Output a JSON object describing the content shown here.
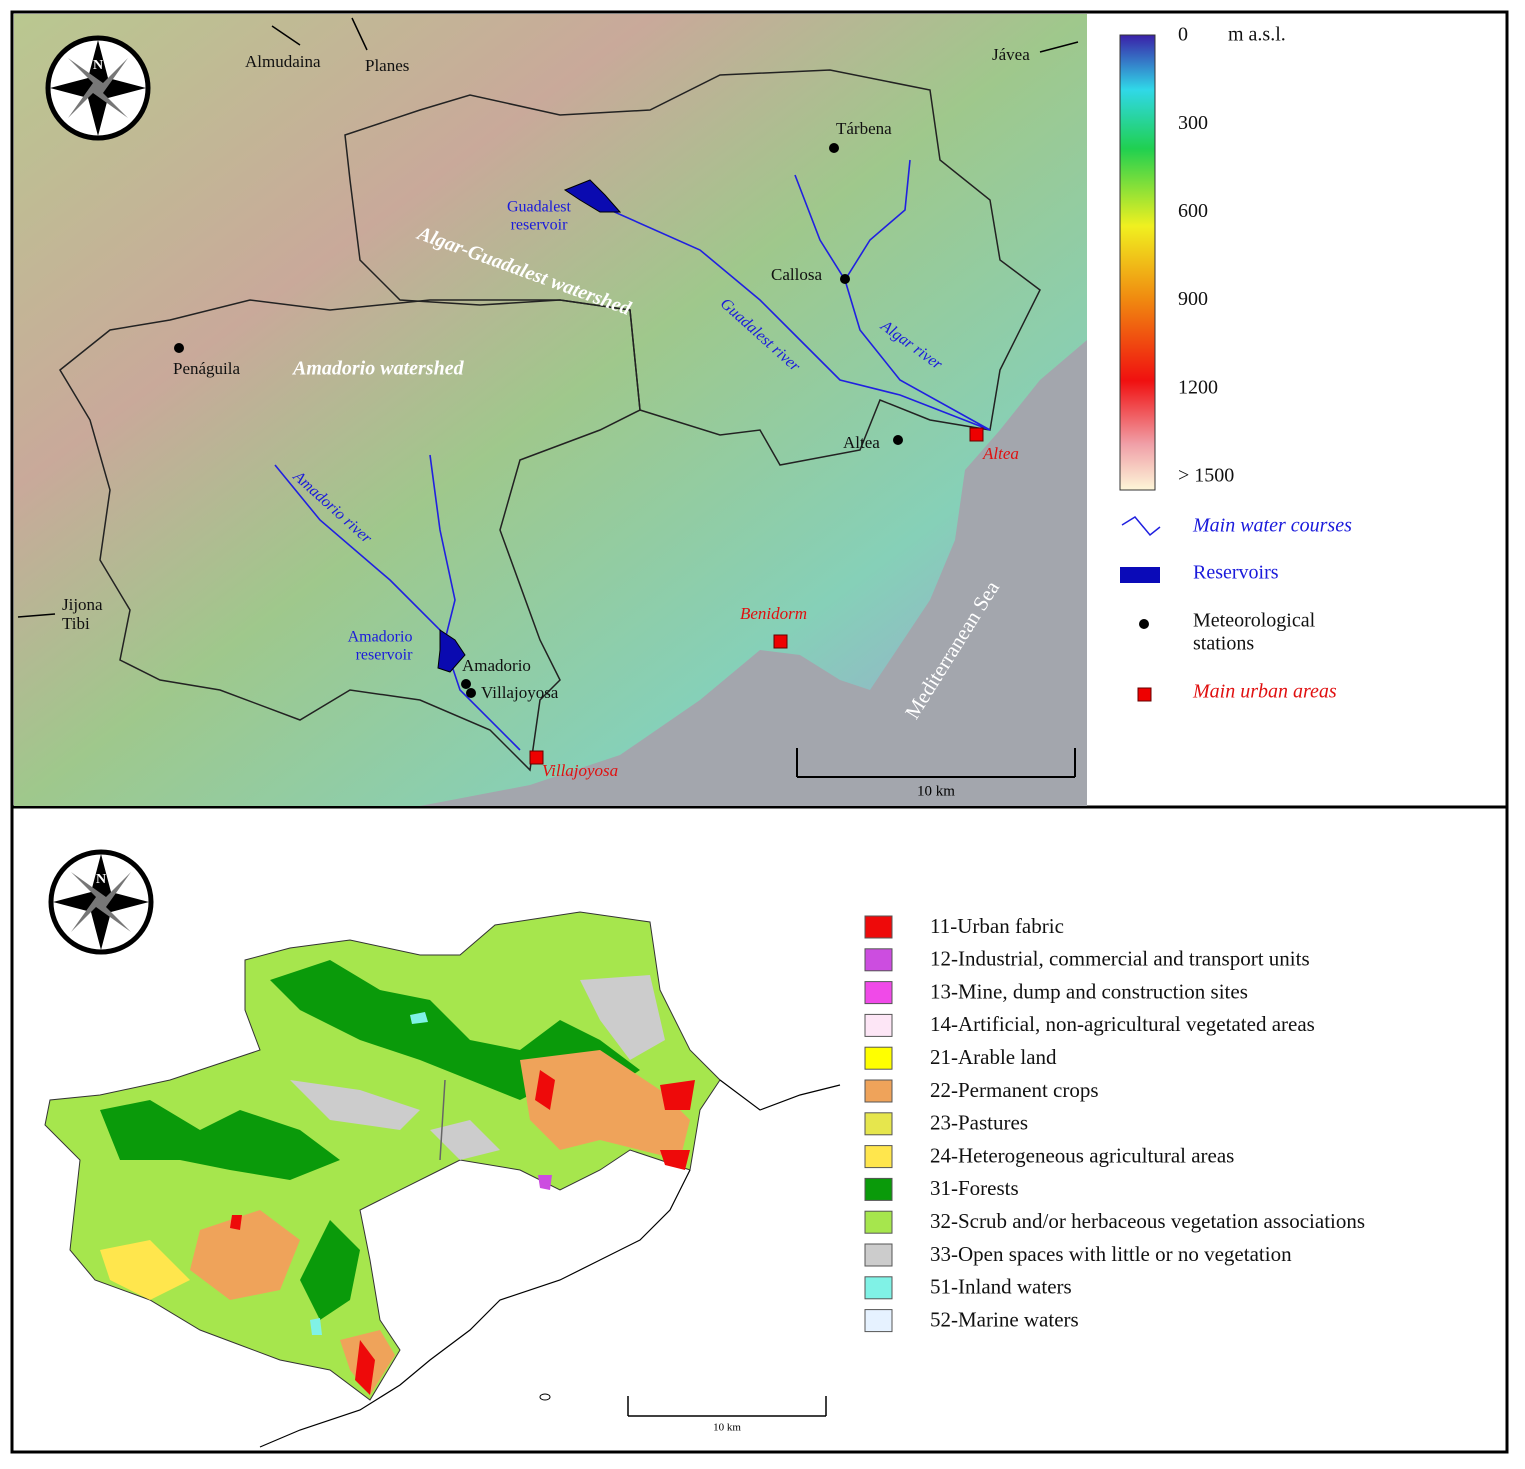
{
  "top_map": {
    "places": [
      "Almudaina",
      "Planes",
      "Jávea",
      "Tárbena",
      "Callosa",
      "Penáguila",
      "Altea",
      "Amadorio",
      "Villajoyosa",
      "Jijona",
      "Tibi"
    ],
    "urban_areas": [
      "Altea",
      "Benidorm",
      "Villajoyosa"
    ],
    "reservoirs": [
      [
        "Guadalest",
        "reservoir"
      ],
      [
        "Amadorio",
        "reservoir"
      ]
    ],
    "rivers": [
      "Guadalest river",
      "Algar river",
      "Amadorio river"
    ],
    "watersheds": [
      "Algar-Guadalest watershed",
      "Amadorio watershed"
    ],
    "sea": "Mediterranean Sea",
    "north": "N",
    "scale": "10 km",
    "elevation_legend": {
      "unit": "m a.s.l.",
      "labels": [
        "0",
        "300",
        "600",
        "900",
        "1200",
        "> 1500"
      ]
    },
    "legend": {
      "water_courses": "Main water courses",
      "reservoirs": "Reservoirs",
      "stations": [
        "Meteorological",
        "stations"
      ],
      "urban": "Main urban areas"
    }
  },
  "bottom_map": {
    "north": "N",
    "scale": "10 km",
    "legend": [
      {
        "label": "11-Urban fabric",
        "color": "#ee0a0a"
      },
      {
        "label": "12-Industrial, commercial and transport units",
        "color": "#cc4de0"
      },
      {
        "label": "13-Mine, dump and construction sites",
        "color": "#f04ae8"
      },
      {
        "label": "14-Artificial, non-agricultural vegetated areas",
        "color": "#fde6f6"
      },
      {
        "label": "21-Arable land",
        "color": "#ffff00"
      },
      {
        "label": "22-Permanent crops",
        "color": "#efa35a"
      },
      {
        "label": "23-Pastures",
        "color": "#e6e64d"
      },
      {
        "label": "24-Heterogeneous agricultural areas",
        "color": "#ffe64d"
      },
      {
        "label": "31-Forests",
        "color": "#0a9a0a"
      },
      {
        "label": "32-Scrub and/or herbaceous vegetation associations",
        "color": "#a6e64d"
      },
      {
        "label": "33-Open spaces with little or no vegetation",
        "color": "#cccccc"
      },
      {
        "label": "51-Inland waters",
        "color": "#80f2e6"
      },
      {
        "label": "52-Marine waters",
        "color": "#e6f2ff"
      }
    ]
  }
}
